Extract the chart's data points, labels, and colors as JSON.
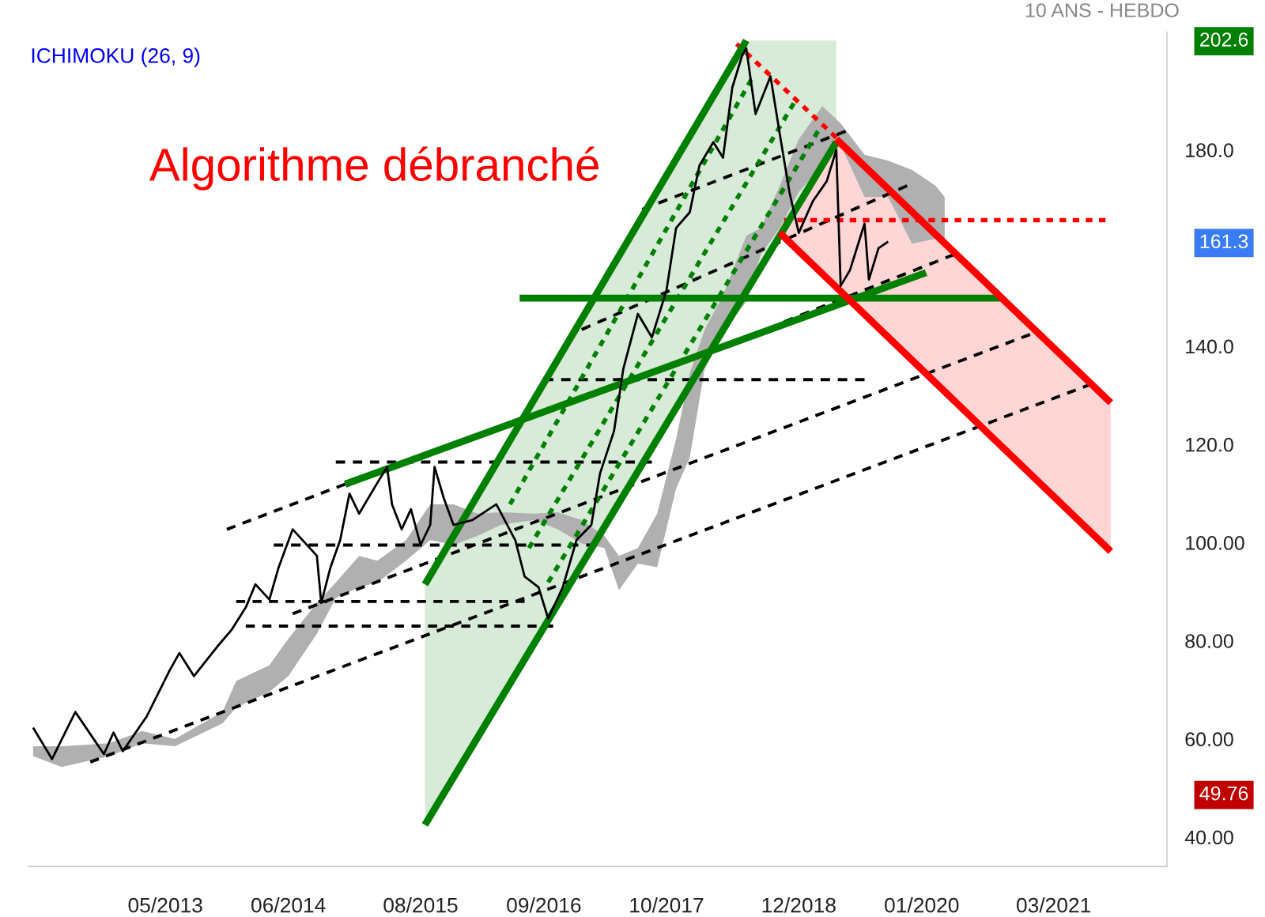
{
  "chart_data": {
    "type": "line",
    "annotations": [
      "10 ANS - HEBDO",
      "ICHIMOKU (26, 9)",
      "Algorithme débranché",
      "202.6",
      "161.3",
      "49.76"
    ],
    "xlim": [
      "2012-02-15",
      "2022-03-01"
    ],
    "xticks": [
      {
        "value": "2013-05",
        "label": "05/2013"
      },
      {
        "value": "2014-06",
        "label": "06/2014"
      },
      {
        "value": "2015-08",
        "label": "08/2015"
      },
      {
        "value": "2016-09",
        "label": "09/2016"
      },
      {
        "value": "2017-10",
        "label": "10/2017"
      },
      {
        "value": "2018-12",
        "label": "12/2018"
      },
      {
        "value": "2020-01",
        "label": "01/2020"
      },
      {
        "value": "2021-03",
        "label": "03/2021"
      }
    ],
    "ylim": [
      34,
      204
    ],
    "yticks": [
      {
        "value": 40,
        "label": "40.00"
      },
      {
        "value": 60,
        "label": "60.00"
      },
      {
        "value": 80,
        "label": "80.00"
      },
      {
        "value": 100,
        "label": "100.00"
      },
      {
        "value": 120,
        "label": "120.0"
      },
      {
        "value": 140,
        "label": "140.0"
      },
      {
        "value": 180,
        "label": "180.0"
      }
    ],
    "grid": false,
    "series": [
      {
        "color": "#b0b0b0",
        "values": [
          null,
          null,
          null,
          null,
          null,
          null,
          null,
          null,
          null,
          null,
          null,
          null,
          null,
          null,
          null,
          null,
          null,
          null,
          null,
          null,
          null,
          null,
          null,
          null,
          null,
          null,
          null,
          null,
          null,
          null,
          null,
          null,
          null,
          null,
          null,
          null,
          null,
          null,
          null,
          null
        ],
        "x": [
          "2012-03-01",
          "2012-06-01",
          "2012-11-01",
          "2013-02-15",
          "2013-06-01",
          "2013-11-01",
          "2013-12-15",
          "2014-04-01",
          "2014-06-01",
          "2014-09-01",
          "2014-11-01",
          "2015-01-15",
          "2015-03-15",
          "2015-06-15",
          "2015-09-01",
          "2015-11-15",
          "2016-02-01",
          "2016-04-15",
          "2016-08-01",
          "2016-10-15",
          "2017-01-01",
          "2017-03-15",
          "2017-05-01",
          "2017-07-01",
          "2017-09-01",
          "2017-11-01",
          "2017-12-15",
          "2018-02-01",
          "2018-04-01",
          "2018-06-15",
          "2018-08-01",
          "2018-10-01",
          "2018-12-01",
          "2019-02-15",
          "2019-04-15",
          "2019-07-01",
          "2019-09-15",
          "2019-12-01",
          "2020-02-15",
          "2020-03-15"
        ],
        "upper": [
          58.5,
          58.5,
          59.1,
          61.6,
          60.0,
          65.5,
          71.8,
          75.0,
          80.4,
          87.7,
          91.9,
          97.3,
          96.3,
          100.5,
          107.8,
          107.8,
          105.9,
          106.2,
          105.9,
          106.2,
          104.6,
          101.4,
          97.3,
          98.9,
          105.9,
          121.1,
          134.5,
          143.4,
          150.4,
          162.5,
          164.1,
          172.7,
          182.2,
          188.9,
          185.4,
          179.0,
          177.8,
          175.9,
          172.7,
          170.4
        ],
        "lower": [
          56.5,
          54.3,
          56.5,
          59.1,
          58.5,
          63.2,
          66.4,
          69.6,
          72.8,
          81.4,
          88.7,
          90.9,
          91.9,
          96.3,
          100.5,
          99.5,
          101.4,
          103.6,
          104.6,
          102.7,
          99.8,
          98.9,
          90.3,
          95.7,
          95.0,
          111.0,
          117.3,
          135.4,
          142.8,
          149.1,
          158.7,
          164.1,
          171.4,
          176.8,
          181.0,
          170.4,
          170.4,
          160.9,
          161.9,
          161.9
        ]
      },
      {
        "color": "#000000",
        "line_style": "dashed",
        "x": [
          "2013-12-15",
          "2016-07-01"
        ],
        "values": [
          88.0,
          88.0
        ]
      },
      {
        "color": "#000000",
        "line_style": "dashed",
        "x": [
          "2014-01-15",
          "2016-10-01"
        ],
        "values": [
          83.0,
          83.0
        ]
      },
      {
        "color": "#000000",
        "line_style": "dashed",
        "x": [
          "2014-04-15",
          "2017-02-15"
        ],
        "values": [
          99.5,
          99.5
        ]
      },
      {
        "color": "#000000",
        "line_style": "dashed",
        "x": [
          "2014-11-01",
          "2017-08-15"
        ],
        "values": [
          116.4,
          116.4
        ]
      },
      {
        "color": "#000000",
        "line_style": "dashed",
        "x": [
          "2016-09-01",
          "2019-07-01"
        ],
        "values": [
          133.2,
          133.2
        ]
      },
      {
        "color": "#000000",
        "line_style": "dashed",
        "x": [
          "2013-11-15",
          "2014-12-01"
        ],
        "values": [
          102.7,
          111.9
        ]
      },
      {
        "color": "#000000",
        "line_style": "dashed",
        "x": [
          "2012-09-01",
          "2021-07-01"
        ],
        "values": [
          55.3,
          132.3
        ]
      },
      {
        "color": "#000000",
        "line_style": "dashed",
        "x": [
          "2014-06-15",
          "2020-12-15"
        ],
        "values": [
          85.5,
          142.4
        ]
      },
      {
        "color": "#000000",
        "line_style": "dashed",
        "x": [
          "2017-01-01",
          "2019-11-15"
        ],
        "values": [
          143.4,
          172.7
        ]
      },
      {
        "color": "#000000",
        "line_style": "dashed",
        "x": [
          "2017-07-15",
          "2019-05-01"
        ],
        "values": [
          167.9,
          183.8
        ]
      },
      {
        "color": "#000000",
        "line_style": "dashed",
        "x": [
          "2018-10-15",
          "2020-04-15"
        ],
        "values": [
          145.0,
          158.7
        ]
      },
      {
        "color": "#008000",
        "line_style": "dotted",
        "x": [
          "2016-05-15",
          "2018-07-01"
        ],
        "values": [
          107.8,
          194.3
        ]
      },
      {
        "color": "#008000",
        "line_style": "dotted",
        "x": [
          "2016-07-15",
          "2018-11-15"
        ],
        "values": [
          98.9,
          189.5
        ]
      },
      {
        "color": "#008000",
        "line_style": "dotted",
        "x": [
          "2016-09-15",
          "2019-02-01"
        ],
        "values": [
          91.9,
          183.8
        ]
      },
      {
        "color": "#ff0000",
        "line_style": "dotted",
        "x": [
          "2018-05-15",
          "2019-04-01"
        ],
        "values": [
          201.6,
          182.5
        ]
      },
      {
        "color": "#ff0000",
        "line_style": "dotted",
        "x": [
          "2018-10-15",
          "2021-08-15"
        ],
        "values": [
          165.7,
          165.7
        ]
      },
      {
        "color": "#008000",
        "line_style": "solid",
        "x": [
          "2015-08-15",
          "2018-06-15"
        ],
        "values": [
          91.5,
          202.3
        ]
      },
      {
        "color": "#008000",
        "line_style": "solid",
        "x": [
          "2015-08-15",
          "2019-04-01"
        ],
        "values": [
          42.5,
          181.6
        ]
      },
      {
        "color": "#008000",
        "line_style": "solid",
        "x": [
          "2014-12-01",
          "2020-01-15"
        ],
        "values": [
          111.9,
          155.0
        ]
      },
      {
        "color": "#008000",
        "line_style": "solid",
        "x": [
          "2016-06-15",
          "2020-09-15"
        ],
        "values": [
          149.8,
          149.8
        ]
      },
      {
        "color": "#ff0000",
        "line_style": "solid",
        "x": [
          "2019-04-01",
          "2021-09-01"
        ],
        "values": [
          182.2,
          128.5
        ]
      },
      {
        "color": "#ff0000",
        "line_style": "solid",
        "x": [
          "2018-10-01",
          "2021-09-01"
        ],
        "values": [
          163.1,
          98.2
        ]
      },
      {
        "color": "#000000",
        "line_style": "solid",
        "x": [
          "2012-03-01",
          "2012-05-01",
          "2012-07-15",
          "2012-10-15",
          "2012-11-15",
          "2012-12-15",
          "2013-03-01",
          "2013-05-15",
          "2013-06-15",
          "2013-08-01",
          "2013-10-15",
          "2013-12-01",
          "2014-01-15",
          "2014-02-15",
          "2014-04-01",
          "2014-05-01",
          "2014-06-15",
          "2014-09-01",
          "2014-09-15",
          "2014-10-15",
          "2014-11-15",
          "2014-12-15",
          "2015-01-15",
          "2015-03-15",
          "2015-04-15",
          "2015-05-01",
          "2015-06-01",
          "2015-07-01",
          "2015-08-01",
          "2015-09-01",
          "2015-09-15",
          "2015-10-15",
          "2015-11-15",
          "2016-01-15",
          "2016-04-01",
          "2016-06-01",
          "2016-07-01",
          "2016-08-15",
          "2016-09-15",
          "2016-11-01",
          "2016-12-15",
          "2017-02-01",
          "2017-03-01",
          "2017-04-15",
          "2017-05-15",
          "2017-07-01",
          "2017-08-15",
          "2017-10-01",
          "2017-11-01",
          "2017-12-15",
          "2018-01-15",
          "2018-03-01",
          "2018-04-01",
          "2018-05-01",
          "2018-06-01",
          "2018-06-15",
          "2018-07-15",
          "2018-09-01",
          "2018-10-01",
          "2018-11-01",
          "2018-12-01",
          "2019-01-15",
          "2019-03-01",
          "2019-04-01",
          "2019-04-15",
          "2019-05-15",
          "2019-07-01",
          "2019-07-15",
          "2019-08-15",
          "2019-09-15"
        ],
        "values": [
          62.3,
          55.9,
          65.5,
          56.9,
          61.3,
          57.5,
          64.5,
          74.0,
          77.5,
          72.8,
          78.8,
          82.3,
          86.8,
          91.5,
          88.4,
          95.0,
          102.7,
          97.3,
          87.7,
          95.0,
          100.5,
          110.0,
          105.9,
          112.2,
          115.4,
          107.8,
          102.7,
          106.8,
          99.5,
          103.6,
          115.4,
          109.0,
          103.6,
          104.6,
          107.8,
          100.5,
          93.1,
          90.9,
          84.5,
          90.9,
          100.5,
          103.6,
          114.1,
          122.7,
          135.4,
          146.6,
          141.8,
          151.4,
          164.1,
          167.3,
          176.8,
          181.6,
          178.4,
          192.7,
          199.1,
          200.7,
          187.3,
          195.0,
          183.2,
          171.4,
          163.1,
          169.5,
          173.6,
          180.0,
          152.3,
          155.5,
          165.0,
          153.6,
          160.0,
          161.3
        ]
      }
    ]
  }
}
